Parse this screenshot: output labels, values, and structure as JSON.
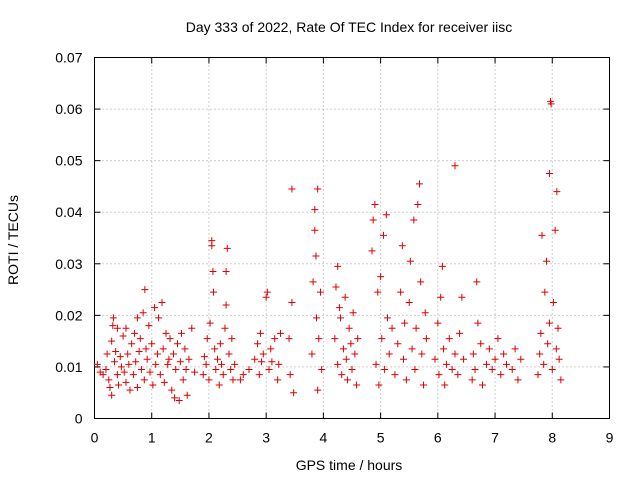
{
  "chart_data": {
    "type": "scatter",
    "title": "Day 333 of 2022, Rate Of TEC Index for receiver iisc",
    "xlabel": "GPS time / hours",
    "ylabel": "ROTI / TECUs",
    "xlim": [
      0,
      9
    ],
    "ylim": [
      0,
      0.07
    ],
    "xticks": [
      0,
      1,
      2,
      3,
      4,
      5,
      6,
      7,
      8,
      9
    ],
    "xtick_labels": [
      "0",
      "1",
      "2",
      "3",
      "4",
      "5",
      "6",
      "7",
      "8",
      "9"
    ],
    "yticks": [
      0,
      0.01,
      0.02,
      0.03,
      0.04,
      0.05,
      0.06,
      0.07
    ],
    "ytick_labels": [
      "0",
      "0.01",
      "0.02",
      "0.03",
      "0.04",
      "0.05",
      "0.06",
      "0.07"
    ],
    "grid": true,
    "marker": "+",
    "color": "#e00000",
    "series": [
      {
        "name": "ROTI",
        "points": [
          [
            0.05,
            0.0105
          ],
          [
            0.1,
            0.009
          ],
          [
            0.15,
            0.0085
          ],
          [
            0.2,
            0.0095
          ],
          [
            0.22,
            0.0125
          ],
          [
            0.25,
            0.0075
          ],
          [
            0.27,
            0.006
          ],
          [
            0.3,
            0.0045
          ],
          [
            0.3,
            0.015
          ],
          [
            0.32,
            0.018
          ],
          [
            0.33,
            0.0195
          ],
          [
            0.35,
            0.011
          ],
          [
            0.37,
            0.013
          ],
          [
            0.4,
            0.0085
          ],
          [
            0.4,
            0.0175
          ],
          [
            0.42,
            0.0065
          ],
          [
            0.45,
            0.012
          ],
          [
            0.47,
            0.01
          ],
          [
            0.5,
            0.016
          ],
          [
            0.52,
            0.009
          ],
          [
            0.55,
            0.007
          ],
          [
            0.55,
            0.0175
          ],
          [
            0.58,
            0.0125
          ],
          [
            0.6,
            0.0105
          ],
          [
            0.62,
            0.0055
          ],
          [
            0.65,
            0.0145
          ],
          [
            0.68,
            0.0085
          ],
          [
            0.7,
            0.0165
          ],
          [
            0.72,
            0.011
          ],
          [
            0.75,
            0.0195
          ],
          [
            0.75,
            0.006
          ],
          [
            0.78,
            0.013
          ],
          [
            0.8,
            0.0155
          ],
          [
            0.82,
            0.0095
          ],
          [
            0.85,
            0.0205
          ],
          [
            0.87,
            0.0075
          ],
          [
            0.88,
            0.025
          ],
          [
            0.9,
            0.0135
          ],
          [
            0.92,
            0.0115
          ],
          [
            0.95,
            0.018
          ],
          [
            0.97,
            0.009
          ],
          [
            1.0,
            0.0145
          ],
          [
            1.02,
            0.0065
          ],
          [
            1.05,
            0.0215
          ],
          [
            1.07,
            0.0105
          ],
          [
            1.1,
            0.0125
          ],
          [
            1.12,
            0.0195
          ],
          [
            1.15,
            0.0085
          ],
          [
            1.18,
            0.0225
          ],
          [
            1.2,
            0.0135
          ],
          [
            1.22,
            0.007
          ],
          [
            1.25,
            0.0165
          ],
          [
            1.28,
            0.0105
          ],
          [
            1.3,
            0.0115
          ],
          [
            1.32,
            0.0155
          ],
          [
            1.35,
            0.0055
          ],
          [
            1.38,
            0.0125
          ],
          [
            1.4,
            0.004
          ],
          [
            1.42,
            0.0095
          ],
          [
            1.45,
            0.0145
          ],
          [
            1.48,
            0.0035
          ],
          [
            1.5,
            0.011
          ],
          [
            1.52,
            0.0165
          ],
          [
            1.55,
            0.0075
          ],
          [
            1.58,
            0.0135
          ],
          [
            1.6,
            0.0095
          ],
          [
            1.62,
            0.0045
          ],
          [
            1.65,
            0.0115
          ],
          [
            1.7,
            0.0175
          ],
          [
            1.75,
            0.009
          ],
          [
            1.9,
            0.0085
          ],
          [
            1.92,
            0.012
          ],
          [
            1.95,
            0.0105
          ],
          [
            1.97,
            0.0155
          ],
          [
            2.0,
            0.0075
          ],
          [
            2.02,
            0.0185
          ],
          [
            2.05,
            0.0345
          ],
          [
            2.05,
            0.0335
          ],
          [
            2.07,
            0.0285
          ],
          [
            2.08,
            0.0245
          ],
          [
            2.1,
            0.0135
          ],
          [
            2.12,
            0.0095
          ],
          [
            2.15,
            0.0115
          ],
          [
            2.18,
            0.0065
          ],
          [
            2.2,
            0.0145
          ],
          [
            2.22,
            0.0105
          ],
          [
            2.25,
            0.0085
          ],
          [
            2.28,
            0.0175
          ],
          [
            2.3,
            0.022
          ],
          [
            2.3,
            0.0285
          ],
          [
            2.32,
            0.033
          ],
          [
            2.35,
            0.0125
          ],
          [
            2.38,
            0.0095
          ],
          [
            2.4,
            0.0155
          ],
          [
            2.42,
            0.0075
          ],
          [
            2.45,
            0.0105
          ],
          [
            2.55,
            0.0075
          ],
          [
            2.6,
            0.0085
          ],
          [
            2.7,
            0.0095
          ],
          [
            2.8,
            0.0115
          ],
          [
            2.85,
            0.0145
          ],
          [
            2.88,
            0.0085
          ],
          [
            2.9,
            0.0165
          ],
          [
            2.92,
            0.011
          ],
          [
            2.95,
            0.0125
          ],
          [
            3.0,
            0.0235
          ],
          [
            3.02,
            0.0245
          ],
          [
            3.05,
            0.0095
          ],
          [
            3.08,
            0.0135
          ],
          [
            3.1,
            0.011
          ],
          [
            3.15,
            0.0155
          ],
          [
            3.2,
            0.0075
          ],
          [
            3.22,
            0.0105
          ],
          [
            3.25,
            0.0165
          ],
          [
            3.4,
            0.0155
          ],
          [
            3.42,
            0.0085
          ],
          [
            3.45,
            0.0445
          ],
          [
            3.45,
            0.0225
          ],
          [
            3.48,
            0.005
          ],
          [
            3.8,
            0.0125
          ],
          [
            3.82,
            0.0265
          ],
          [
            3.85,
            0.0405
          ],
          [
            3.85,
            0.0365
          ],
          [
            3.87,
            0.0315
          ],
          [
            3.88,
            0.0195
          ],
          [
            3.9,
            0.0445
          ],
          [
            3.9,
            0.0055
          ],
          [
            3.92,
            0.0155
          ],
          [
            3.95,
            0.0245
          ],
          [
            3.97,
            0.0095
          ],
          [
            4.2,
            0.0155
          ],
          [
            4.22,
            0.0255
          ],
          [
            4.25,
            0.0295
          ],
          [
            4.25,
            0.0105
          ],
          [
            4.28,
            0.0215
          ],
          [
            4.3,
            0.0195
          ],
          [
            4.32,
            0.0085
          ],
          [
            4.35,
            0.0135
          ],
          [
            4.38,
            0.0235
          ],
          [
            4.4,
            0.0115
          ],
          [
            4.42,
            0.0075
          ],
          [
            4.45,
            0.0175
          ],
          [
            4.48,
            0.0145
          ],
          [
            4.5,
            0.0095
          ],
          [
            4.52,
            0.0205
          ],
          [
            4.55,
            0.0125
          ],
          [
            4.58,
            0.0065
          ],
          [
            4.6,
            0.0155
          ],
          [
            4.85,
            0.0325
          ],
          [
            4.87,
            0.0385
          ],
          [
            4.9,
            0.0415
          ],
          [
            4.92,
            0.0105
          ],
          [
            4.95,
            0.0245
          ],
          [
            4.97,
            0.0065
          ],
          [
            5.0,
            0.0275
          ],
          [
            5.02,
            0.0155
          ],
          [
            5.05,
            0.0355
          ],
          [
            5.07,
            0.0095
          ],
          [
            5.1,
            0.0395
          ],
          [
            5.12,
            0.0195
          ],
          [
            5.15,
            0.0125
          ],
          [
            5.2,
            0.0175
          ],
          [
            5.25,
            0.0085
          ],
          [
            5.3,
            0.0145
          ],
          [
            5.35,
            0.0245
          ],
          [
            5.38,
            0.0335
          ],
          [
            5.4,
            0.0115
          ],
          [
            5.42,
            0.0185
          ],
          [
            5.45,
            0.0075
          ],
          [
            5.5,
            0.0225
          ],
          [
            5.52,
            0.0305
          ],
          [
            5.55,
            0.0135
          ],
          [
            5.58,
            0.0385
          ],
          [
            5.6,
            0.0095
          ],
          [
            5.62,
            0.0175
          ],
          [
            5.65,
            0.0415
          ],
          [
            5.68,
            0.0455
          ],
          [
            5.7,
            0.0265
          ],
          [
            5.72,
            0.0125
          ],
          [
            5.75,
            0.0065
          ],
          [
            5.78,
            0.0205
          ],
          [
            5.8,
            0.0155
          ],
          [
            5.95,
            0.0115
          ],
          [
            6.0,
            0.0185
          ],
          [
            6.02,
            0.0085
          ],
          [
            6.05,
            0.0235
          ],
          [
            6.08,
            0.0295
          ],
          [
            6.1,
            0.0135
          ],
          [
            6.12,
            0.0065
          ],
          [
            6.15,
            0.0105
          ],
          [
            6.2,
            0.0155
          ],
          [
            6.25,
            0.0095
          ],
          [
            6.3,
            0.0125
          ],
          [
            6.3,
            0.049
          ],
          [
            6.35,
            0.0085
          ],
          [
            6.38,
            0.0165
          ],
          [
            6.42,
            0.0235
          ],
          [
            6.45,
            0.0115
          ],
          [
            6.6,
            0.0075
          ],
          [
            6.62,
            0.0125
          ],
          [
            6.65,
            0.0095
          ],
          [
            6.68,
            0.0265
          ],
          [
            6.7,
            0.0185
          ],
          [
            6.75,
            0.0145
          ],
          [
            6.78,
            0.0065
          ],
          [
            6.85,
            0.0105
          ],
          [
            6.9,
            0.0135
          ],
          [
            6.95,
            0.0095
          ],
          [
            7.0,
            0.0115
          ],
          [
            7.05,
            0.0155
          ],
          [
            7.1,
            0.0085
          ],
          [
            7.15,
            0.0125
          ],
          [
            7.2,
            0.0105
          ],
          [
            7.3,
            0.0095
          ],
          [
            7.35,
            0.0135
          ],
          [
            7.4,
            0.0075
          ],
          [
            7.45,
            0.0115
          ],
          [
            7.75,
            0.0085
          ],
          [
            7.78,
            0.0125
          ],
          [
            7.8,
            0.0165
          ],
          [
            7.82,
            0.0355
          ],
          [
            7.85,
            0.0105
          ],
          [
            7.87,
            0.0245
          ],
          [
            7.9,
            0.0305
          ],
          [
            7.92,
            0.0145
          ],
          [
            7.95,
            0.0185
          ],
          [
            7.95,
            0.0475
          ],
          [
            7.97,
            0.0615
          ],
          [
            7.98,
            0.061
          ],
          [
            8.0,
            0.0095
          ],
          [
            8.02,
            0.0225
          ],
          [
            8.05,
            0.0365
          ],
          [
            8.07,
            0.0135
          ],
          [
            8.08,
            0.044
          ],
          [
            8.1,
            0.0175
          ],
          [
            8.12,
            0.0115
          ],
          [
            8.15,
            0.0075
          ]
        ]
      }
    ]
  }
}
